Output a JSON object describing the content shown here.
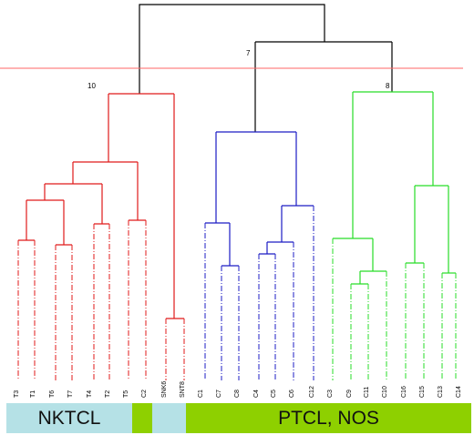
{
  "colors": {
    "nktcl_cluster": "#e01a1a",
    "ptcl_blue_cluster": "#1c1cc4",
    "ptcl_green_cluster": "#27dd27",
    "root": "#000000",
    "cut_line": "#ff6666",
    "band_nktcl": "#b5e1e6",
    "band_ptcl": "#8ed000"
  },
  "cluster_numbers": [
    "10",
    "7",
    "8"
  ],
  "leaves": [
    "T3",
    "T1",
    "T6",
    "T7",
    "T4",
    "T2",
    "T5",
    "C2",
    "SNK6",
    "SNT8",
    "C1",
    "C7",
    "C8",
    "C4",
    "C5",
    "C6",
    "C12",
    "C3",
    "C9",
    "C11",
    "C10",
    "C16",
    "C15",
    "C13",
    "C14"
  ],
  "bands": {
    "nktcl": "NKTCL",
    "ptcl": "PTCL, NOS"
  }
}
